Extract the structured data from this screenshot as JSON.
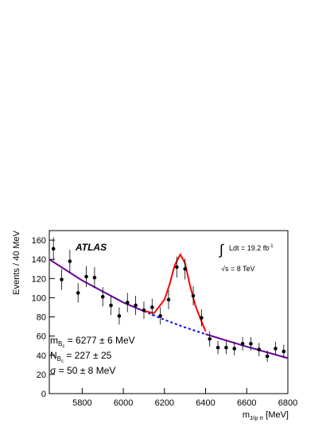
{
  "chart_data": {
    "type": "scatter",
    "xlabel": {
      "symbol": "m",
      "sub": "J/ψ π",
      "text": " [MeV]"
    },
    "ylabel": "Events / 40 MeV",
    "xlim": [
      5640,
      6800
    ],
    "ylim": [
      0,
      170
    ],
    "xticks": [
      5800,
      6000,
      6200,
      6400,
      6600,
      6800
    ],
    "yticks": [
      0,
      20,
      40,
      60,
      80,
      100,
      120,
      140,
      160
    ],
    "points": {
      "color": "#000000",
      "x": [
        5660,
        5700,
        5740,
        5780,
        5820,
        5860,
        5900,
        5940,
        5980,
        6020,
        6060,
        6100,
        6140,
        6180,
        6220,
        6260,
        6300,
        6340,
        6380,
        6420,
        6460,
        6500,
        6540,
        6580,
        6620,
        6660,
        6700,
        6740,
        6780
      ],
      "values": [
        151,
        119,
        138,
        105,
        122,
        121,
        101,
        92,
        81,
        95,
        92,
        87,
        90,
        81,
        98,
        132,
        130,
        102,
        79,
        57,
        48,
        48,
        47,
        52,
        52,
        46,
        39,
        47,
        44
      ],
      "errors": [
        12,
        11,
        12,
        10,
        11,
        11,
        10,
        10,
        9,
        10,
        10,
        9,
        9,
        9,
        10,
        11,
        11,
        10,
        9,
        8,
        7,
        7,
        7,
        7,
        7,
        7,
        6,
        7,
        7
      ]
    },
    "curves": [
      {
        "color": "#660099",
        "dash": false,
        "x": [
          5640,
          5800,
          6000,
          6100,
          6200,
          6300,
          6400,
          6600,
          6800
        ],
        "values": [
          140,
          118,
          95,
          86,
          null,
          null,
          62,
          49,
          37
        ]
      },
      {
        "color": "#0000ff",
        "dash": true,
        "x": [
          6100,
          6200,
          6300,
          6400
        ],
        "values": [
          86,
          77,
          69,
          62
        ]
      },
      {
        "color": "#ff0000",
        "dash": false,
        "x": [
          6100,
          6150,
          6200,
          6225,
          6250,
          6277,
          6300,
          6325,
          6350,
          6375,
          6400
        ],
        "values": [
          86,
          84,
          98,
          114,
          134,
          145,
          136,
          112,
          92,
          78,
          65
        ]
      }
    ],
    "annotations": {
      "experiment": "ATLAS",
      "lumi": {
        "integral": "∫",
        "text": "Ldt = 19.2 fb",
        "sup": "-1"
      },
      "energy": "√s = 8 TeV",
      "mass": {
        "symbol": "m",
        "sub": "B",
        "subsub": "c",
        "text": " = 6277 ± 6 MeV"
      },
      "yield": {
        "symbol": "N",
        "sub": "B",
        "subsub": "c",
        "text": " = 227 ± 25"
      },
      "width": "σ = 50 ± 8 MeV"
    }
  }
}
